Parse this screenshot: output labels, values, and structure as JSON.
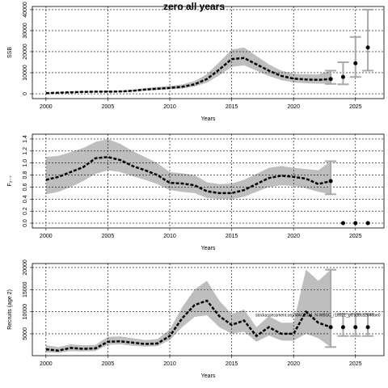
{
  "chart_data": [
    {
      "type": "line",
      "title": "zero all years",
      "xlabel": "Years",
      "ylabel": "SSB",
      "x": [
        2000,
        2001,
        2002,
        2003,
        2004,
        2005,
        2006,
        2007,
        2008,
        2009,
        2010,
        2011,
        2012,
        2013,
        2014,
        2015,
        2016,
        2017,
        2018,
        2019,
        2020,
        2021,
        2022,
        2023
      ],
      "values": [
        300,
        500,
        700,
        900,
        1000,
        1000,
        1100,
        1400,
        2000,
        2400,
        2800,
        3300,
        4500,
        7000,
        11500,
        16500,
        17000,
        14000,
        11000,
        8500,
        7200,
        6800,
        6600,
        7000
      ],
      "lower": [
        200,
        350,
        500,
        650,
        750,
        750,
        800,
        1050,
        1500,
        1800,
        2100,
        2500,
        3400,
        5300,
        8800,
        12800,
        13500,
        11000,
        8500,
        6500,
        5400,
        5000,
        4800,
        4700
      ],
      "upper": [
        450,
        700,
        950,
        1200,
        1350,
        1350,
        1500,
        1900,
        2700,
        3200,
        3700,
        4400,
        6000,
        9300,
        15000,
        21000,
        22000,
        18000,
        14000,
        11000,
        9500,
        9200,
        9200,
        11000
      ],
      "points": {
        "x": [
          2023,
          2024,
          2025,
          2026
        ],
        "values": [
          7000,
          8000,
          14500,
          22000
        ],
        "lower": [
          4700,
          4500,
          8000,
          11000
        ],
        "upper": [
          11000,
          15000,
          27000,
          40000
        ]
      },
      "xlim": [
        1998.9,
        2027.3
      ],
      "xticks": [
        2000,
        2005,
        2010,
        2015,
        2020,
        2025
      ],
      "ylim": [
        -2300,
        41500
      ],
      "yticks": [
        0,
        10000,
        20000,
        30000,
        40000
      ],
      "grid": true,
      "line_color": "#000000",
      "band_color": "#bebebe",
      "bar_color": "#a8a8a8",
      "point_color": "#000000"
    },
    {
      "type": "line",
      "xlabel": "Years",
      "ylabel": "F₂₋₇",
      "x": [
        2000,
        2001,
        2002,
        2003,
        2004,
        2005,
        2006,
        2007,
        2008,
        2009,
        2010,
        2011,
        2012,
        2013,
        2014,
        2015,
        2016,
        2017,
        2018,
        2019,
        2020,
        2021,
        2022,
        2023
      ],
      "values": [
        0.72,
        0.77,
        0.85,
        0.93,
        1.08,
        1.1,
        1.05,
        0.95,
        0.88,
        0.8,
        0.67,
        0.66,
        0.63,
        0.53,
        0.5,
        0.5,
        0.55,
        0.65,
        0.75,
        0.79,
        0.77,
        0.74,
        0.65,
        0.7
      ],
      "lower": [
        0.48,
        0.52,
        0.6,
        0.7,
        0.82,
        0.88,
        0.85,
        0.78,
        0.72,
        0.65,
        0.55,
        0.52,
        0.5,
        0.42,
        0.4,
        0.4,
        0.44,
        0.52,
        0.6,
        0.63,
        0.62,
        0.58,
        0.52,
        0.48
      ],
      "upper": [
        1.1,
        1.12,
        1.18,
        1.25,
        1.35,
        1.4,
        1.32,
        1.2,
        1.1,
        1.0,
        0.85,
        0.83,
        0.8,
        0.68,
        0.65,
        0.66,
        0.72,
        0.82,
        0.92,
        0.95,
        0.92,
        0.9,
        0.88,
        1.03
      ],
      "points": {
        "x": [
          2023,
          2024,
          2025,
          2026
        ],
        "values": [
          0.7,
          0,
          0,
          0
        ],
        "lower": [
          0.48,
          null,
          null,
          null
        ],
        "upper": [
          1.03,
          null,
          null,
          null
        ]
      },
      "xlim": [
        1998.9,
        2027.3
      ],
      "xticks": [
        2000,
        2005,
        2010,
        2015,
        2020,
        2025
      ],
      "ylim": [
        -0.08,
        1.48
      ],
      "yticks": [
        {
          "value": 0,
          "label": "0.0"
        },
        0.2,
        0.4,
        0.6,
        0.8,
        {
          "value": 1,
          "label": "1.0"
        },
        1.2,
        1.4
      ],
      "grid": true,
      "line_color": "#000000",
      "band_color": "#bebebe",
      "bar_color": "#a8a8a8",
      "point_color": "#000000"
    },
    {
      "type": "line",
      "xlabel": "Years",
      "ylabel": "Recruits (age 2)",
      "annotation": "stockassessment.org/MAC2024_N-WBSC_r16021_git:a38ca2646be0",
      "x": [
        2000,
        2001,
        2002,
        2003,
        2004,
        2005,
        2006,
        2007,
        2008,
        2009,
        2010,
        2011,
        2012,
        2013,
        2014,
        2015,
        2016,
        2017,
        2018,
        2019,
        2020,
        2021,
        2022,
        2023
      ],
      "values": [
        1500,
        1200,
        1800,
        1600,
        1700,
        3200,
        3300,
        3000,
        2700,
        2800,
        4500,
        8500,
        11500,
        12500,
        9000,
        7000,
        8000,
        4500,
        6500,
        5000,
        5000,
        10000,
        7500,
        6500
      ],
      "lower": [
        800,
        700,
        1100,
        1000,
        1100,
        2500,
        2600,
        2300,
        2100,
        2200,
        3600,
        6500,
        8800,
        9200,
        6500,
        5000,
        5500,
        3200,
        4600,
        3500,
        3400,
        5000,
        4000,
        2000
      ],
      "upper": [
        2400,
        2000,
        2600,
        2400,
        2500,
        4300,
        4400,
        4000,
        3600,
        3800,
        6000,
        11000,
        15000,
        17000,
        12500,
        9500,
        10500,
        6500,
        9000,
        7500,
        7500,
        19500,
        17000,
        19500
      ],
      "points": {
        "x": [
          2023,
          2024,
          2025,
          2026
        ],
        "values": [
          6500,
          6500,
          6500,
          6500
        ],
        "lower": [
          2000,
          4500,
          4500,
          4500
        ],
        "upper": [
          19500,
          9500,
          9500,
          9500
        ]
      },
      "xlim": [
        1998.9,
        2027.3
      ],
      "xticks": [
        2000,
        2005,
        2010,
        2015,
        2020,
        2025
      ],
      "ylim": [
        50,
        20900
      ],
      "yticks": [
        5000,
        10000,
        15000,
        20000
      ],
      "grid": true,
      "line_color": "#000000",
      "band_color": "#bebebe",
      "bar_color": "#a8a8a8",
      "point_color": "#000000"
    }
  ]
}
